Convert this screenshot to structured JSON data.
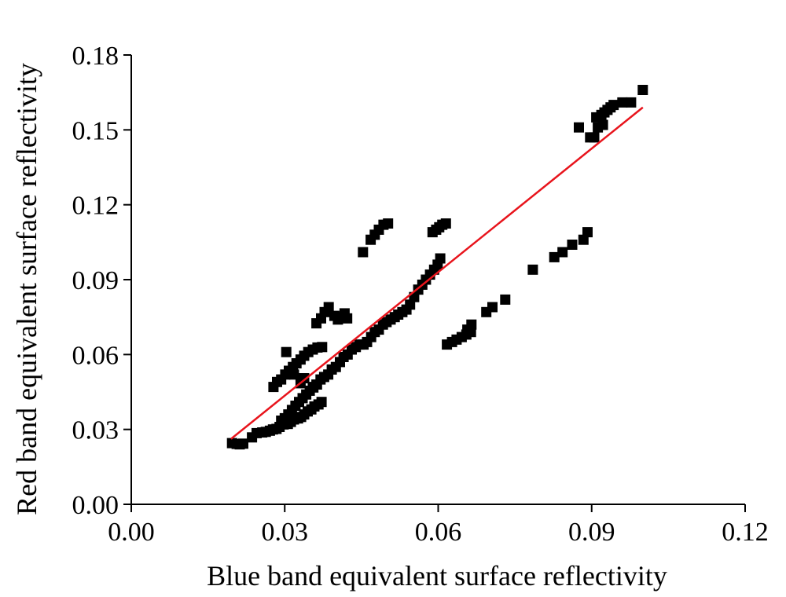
{
  "chart_data": {
    "type": "scatter",
    "title": "",
    "xlabel": "Blue band equivalent surface reflectivity",
    "ylabel": "Red band equivalent surface reflectivity",
    "xlim": [
      0,
      0.12
    ],
    "ylim": [
      0,
      0.18
    ],
    "xticks": [
      "0.00",
      "0.03",
      "0.06",
      "0.09",
      "0.12"
    ],
    "yticks": [
      "0.00",
      "0.03",
      "0.06",
      "0.09",
      "0.12",
      "0.15",
      "0.18"
    ],
    "grid": false,
    "legend": "none",
    "colors": {
      "points": "#000000",
      "fit_line": "#e8141c",
      "axes": "#000000"
    },
    "series": [
      {
        "kind": "points",
        "x": [
          0.0197,
          0.0206,
          0.0212,
          0.0219,
          0.0236,
          0.0245,
          0.0256,
          0.0263,
          0.0271,
          0.0277,
          0.0284,
          0.029,
          0.0298,
          0.0306,
          0.0312,
          0.0318,
          0.0326,
          0.0332,
          0.0338,
          0.0345,
          0.0352,
          0.0358,
          0.0366,
          0.0372,
          0.0293,
          0.03,
          0.0307,
          0.0314,
          0.0321,
          0.0328,
          0.0335,
          0.0342,
          0.0349,
          0.0356,
          0.0363,
          0.0278,
          0.0285,
          0.0293,
          0.0301,
          0.0308,
          0.0316,
          0.0323,
          0.0331,
          0.0338,
          0.0346,
          0.0355,
          0.0364,
          0.0373,
          0.0303,
          0.0318,
          0.0331,
          0.0338,
          0.0362,
          0.0371,
          0.0378,
          0.0386,
          0.0397,
          0.0404,
          0.0412,
          0.0417,
          0.0422,
          0.0355,
          0.0362,
          0.037,
          0.0377,
          0.0385,
          0.0392,
          0.04,
          0.0408,
          0.0415,
          0.0423,
          0.0431,
          0.0439,
          0.0446,
          0.0454,
          0.0461,
          0.0469,
          0.0476,
          0.0484,
          0.0492,
          0.0499,
          0.0507,
          0.0515,
          0.0522,
          0.053,
          0.0538,
          0.0545,
          0.0553,
          0.0561,
          0.0569,
          0.0576,
          0.0584,
          0.0592,
          0.0599,
          0.0604,
          0.0453,
          0.0468,
          0.0476,
          0.0484,
          0.0493,
          0.0502,
          0.0589,
          0.0596,
          0.0602,
          0.0608,
          0.0615,
          0.0617,
          0.0627,
          0.0636,
          0.0646,
          0.0655,
          0.0664,
          0.0657,
          0.0665,
          0.0694,
          0.0706,
          0.0731,
          0.0785,
          0.0827,
          0.0843,
          0.0862,
          0.0884,
          0.0892,
          0.0875,
          0.0897,
          0.0905,
          0.0912,
          0.0919,
          0.0925,
          0.0931,
          0.0937,
          0.0943,
          0.096,
          0.0977,
          0.1,
          0.0909,
          0.0922
        ],
        "y": [
          0.0245,
          0.0242,
          0.024,
          0.0243,
          0.0268,
          0.0285,
          0.0288,
          0.029,
          0.0295,
          0.03,
          0.0302,
          0.031,
          0.032,
          0.0322,
          0.033,
          0.034,
          0.0344,
          0.035,
          0.036,
          0.0372,
          0.038,
          0.0392,
          0.04,
          0.041,
          0.0335,
          0.0345,
          0.036,
          0.0378,
          0.0395,
          0.041,
          0.0425,
          0.044,
          0.0455,
          0.0468,
          0.048,
          0.047,
          0.049,
          0.05,
          0.052,
          0.0535,
          0.055,
          0.0565,
          0.058,
          0.0595,
          0.061,
          0.062,
          0.0628,
          0.063,
          0.061,
          0.052,
          0.0485,
          0.0505,
          0.0725,
          0.0745,
          0.077,
          0.079,
          0.0755,
          0.074,
          0.075,
          0.0765,
          0.0745,
          0.047,
          0.048,
          0.05,
          0.051,
          0.052,
          0.054,
          0.055,
          0.057,
          0.059,
          0.06,
          0.062,
          0.063,
          0.064,
          0.064,
          0.065,
          0.067,
          0.069,
          0.07,
          0.072,
          0.073,
          0.074,
          0.075,
          0.076,
          0.077,
          0.078,
          0.08,
          0.083,
          0.086,
          0.088,
          0.09,
          0.092,
          0.094,
          0.096,
          0.0985,
          0.101,
          0.106,
          0.108,
          0.11,
          0.112,
          0.1125,
          0.109,
          0.11,
          0.111,
          0.112,
          0.1125,
          0.064,
          0.065,
          0.066,
          0.067,
          0.068,
          0.069,
          0.07,
          0.072,
          0.077,
          0.079,
          0.082,
          0.094,
          0.099,
          0.101,
          0.104,
          0.106,
          0.109,
          0.151,
          0.147,
          0.147,
          0.151,
          0.156,
          0.157,
          0.158,
          0.159,
          0.16,
          0.161,
          0.161,
          0.166,
          0.155,
          0.152
        ]
      },
      {
        "kind": "fit_line",
        "x": [
          0.0195,
          0.1
        ],
        "y": [
          0.0262,
          0.159
        ]
      }
    ]
  }
}
